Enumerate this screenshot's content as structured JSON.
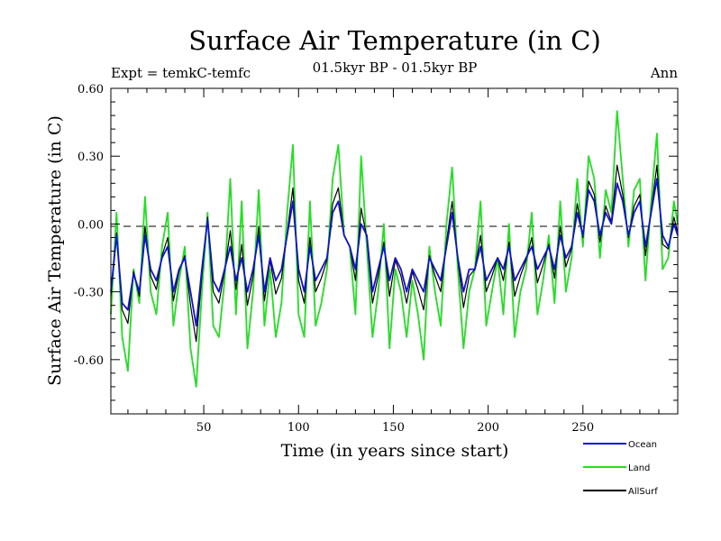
{
  "chart_data": {
    "type": "line",
    "title": "Surface Air Temperature (in C)",
    "subtitle": "01.5kyr BP - 01.5kyr BP",
    "left_label": "Expt = temkC-temfc",
    "right_label": "Ann",
    "xlabel": "Time (in years since start)",
    "ylabel": "Surface Air Temperature (in C)",
    "xlim": [
      1,
      300
    ],
    "ylim": [
      -0.84,
      0.6
    ],
    "x_ticks": [
      50,
      100,
      150,
      200,
      250
    ],
    "y_ticks": [
      "0.60",
      "0.30",
      "0.00",
      "-0.30",
      "-0.60"
    ],
    "reference_line": 0.0,
    "legend_position": "bottom-right",
    "series": [
      {
        "name": "Ocean",
        "color": "#1010d8",
        "x": [
          1,
          4,
          7,
          10,
          13,
          16,
          19,
          22,
          25,
          28,
          31,
          34,
          37,
          40,
          43,
          46,
          49,
          52,
          55,
          58,
          61,
          64,
          67,
          70,
          73,
          76,
          79,
          82,
          85,
          88,
          91,
          94,
          97,
          100,
          103,
          106,
          109,
          112,
          115,
          118,
          121,
          124,
          127,
          130,
          133,
          136,
          139,
          142,
          145,
          148,
          151,
          154,
          157,
          160,
          163,
          166,
          169,
          172,
          175,
          178,
          181,
          184,
          187,
          190,
          193,
          196,
          199,
          202,
          205,
          208,
          211,
          214,
          217,
          220,
          223,
          226,
          229,
          232,
          235,
          238,
          241,
          244,
          247,
          250,
          253,
          256,
          259,
          262,
          265,
          268,
          271,
          274,
          277,
          280,
          283,
          286,
          289,
          292,
          295,
          298,
          300
        ],
        "values": [
          -0.3,
          -0.05,
          -0.35,
          -0.38,
          -0.22,
          -0.3,
          -0.05,
          -0.2,
          -0.25,
          -0.15,
          -0.1,
          -0.3,
          -0.2,
          -0.15,
          -0.3,
          -0.45,
          -0.2,
          0.02,
          -0.25,
          -0.3,
          -0.2,
          -0.1,
          -0.25,
          -0.15,
          -0.3,
          -0.2,
          -0.05,
          -0.3,
          -0.15,
          -0.25,
          -0.2,
          -0.05,
          0.1,
          -0.2,
          -0.3,
          -0.1,
          -0.25,
          -0.2,
          -0.15,
          0.05,
          0.1,
          -0.05,
          -0.1,
          -0.2,
          0.0,
          -0.05,
          -0.3,
          -0.2,
          -0.1,
          -0.25,
          -0.15,
          -0.2,
          -0.3,
          -0.2,
          -0.25,
          -0.3,
          -0.15,
          -0.2,
          -0.25,
          -0.1,
          0.05,
          -0.15,
          -0.3,
          -0.2,
          -0.2,
          -0.1,
          -0.25,
          -0.2,
          -0.15,
          -0.2,
          -0.1,
          -0.25,
          -0.2,
          -0.15,
          -0.1,
          -0.2,
          -0.15,
          -0.1,
          -0.2,
          -0.05,
          -0.15,
          -0.1,
          0.05,
          -0.05,
          0.15,
          0.1,
          -0.05,
          0.05,
          0.0,
          0.18,
          0.1,
          -0.05,
          0.05,
          0.1,
          -0.1,
          0.05,
          0.2,
          -0.05,
          -0.1,
          0.0,
          -0.05
        ]
      },
      {
        "name": "Land",
        "color": "#20e020",
        "x": [
          1,
          4,
          7,
          10,
          13,
          16,
          19,
          22,
          25,
          28,
          31,
          34,
          37,
          40,
          43,
          46,
          49,
          52,
          55,
          58,
          61,
          64,
          67,
          70,
          73,
          76,
          79,
          82,
          85,
          88,
          91,
          94,
          97,
          100,
          103,
          106,
          109,
          112,
          115,
          118,
          121,
          124,
          127,
          130,
          133,
          136,
          139,
          142,
          145,
          148,
          151,
          154,
          157,
          160,
          163,
          166,
          169,
          172,
          175,
          178,
          181,
          184,
          187,
          190,
          193,
          196,
          199,
          202,
          205,
          208,
          211,
          214,
          217,
          220,
          223,
          226,
          229,
          232,
          235,
          238,
          241,
          244,
          247,
          250,
          253,
          256,
          259,
          262,
          265,
          268,
          271,
          274,
          277,
          280,
          283,
          286,
          289,
          292,
          295,
          298,
          300
        ],
        "values": [
          -0.4,
          0.05,
          -0.5,
          -0.65,
          -0.2,
          -0.35,
          0.12,
          -0.3,
          -0.4,
          -0.1,
          0.05,
          -0.45,
          -0.25,
          -0.1,
          -0.55,
          -0.72,
          -0.3,
          0.05,
          -0.45,
          -0.5,
          -0.25,
          0.2,
          -0.4,
          0.1,
          -0.55,
          -0.3,
          0.15,
          -0.45,
          -0.2,
          -0.5,
          -0.35,
          0.05,
          0.35,
          -0.4,
          -0.5,
          0.1,
          -0.45,
          -0.35,
          -0.2,
          0.2,
          0.35,
          -0.05,
          -0.1,
          -0.4,
          0.3,
          -0.1,
          -0.5,
          -0.3,
          0.0,
          -0.55,
          -0.2,
          -0.3,
          -0.5,
          -0.25,
          -0.4,
          -0.6,
          -0.1,
          -0.3,
          -0.45,
          0.0,
          0.25,
          -0.2,
          -0.55,
          -0.3,
          -0.2,
          0.1,
          -0.45,
          -0.3,
          -0.15,
          -0.4,
          0.0,
          -0.5,
          -0.3,
          -0.2,
          0.05,
          -0.4,
          -0.25,
          -0.05,
          -0.35,
          0.1,
          -0.3,
          -0.15,
          0.2,
          -0.1,
          0.3,
          0.2,
          -0.15,
          0.15,
          0.05,
          0.5,
          0.2,
          -0.1,
          0.15,
          0.2,
          -0.25,
          0.1,
          0.4,
          -0.2,
          -0.15,
          0.1,
          0.0
        ]
      },
      {
        "name": "AllSurf",
        "color": "#000000",
        "x": [
          1,
          4,
          7,
          10,
          13,
          16,
          19,
          22,
          25,
          28,
          31,
          34,
          37,
          40,
          43,
          46,
          49,
          52,
          55,
          58,
          61,
          64,
          67,
          70,
          73,
          76,
          79,
          82,
          85,
          88,
          91,
          94,
          97,
          100,
          103,
          106,
          109,
          112,
          115,
          118,
          121,
          124,
          127,
          130,
          133,
          136,
          139,
          142,
          145,
          148,
          151,
          154,
          157,
          160,
          163,
          166,
          169,
          172,
          175,
          178,
          181,
          184,
          187,
          190,
          193,
          196,
          199,
          202,
          205,
          208,
          211,
          214,
          217,
          220,
          223,
          226,
          229,
          232,
          235,
          238,
          241,
          244,
          247,
          250,
          253,
          256,
          259,
          262,
          265,
          268,
          271,
          274,
          277,
          280,
          283,
          286,
          289,
          292,
          295,
          298,
          300
        ],
        "values": [
          -0.32,
          -0.04,
          -0.38,
          -0.44,
          -0.21,
          -0.32,
          -0.01,
          -0.23,
          -0.29,
          -0.14,
          -0.06,
          -0.34,
          -0.21,
          -0.14,
          -0.36,
          -0.52,
          -0.23,
          0.03,
          -0.3,
          -0.35,
          -0.21,
          -0.03,
          -0.29,
          -0.09,
          -0.36,
          -0.23,
          -0.01,
          -0.34,
          -0.16,
          -0.31,
          -0.24,
          -0.04,
          0.16,
          -0.25,
          -0.35,
          -0.06,
          -0.3,
          -0.24,
          -0.16,
          0.09,
          0.16,
          -0.05,
          -0.1,
          -0.25,
          0.07,
          -0.06,
          -0.35,
          -0.23,
          -0.08,
          -0.32,
          -0.16,
          -0.23,
          -0.35,
          -0.21,
          -0.29,
          -0.38,
          -0.14,
          -0.23,
          -0.3,
          -0.08,
          0.1,
          -0.16,
          -0.37,
          -0.23,
          -0.2,
          -0.05,
          -0.3,
          -0.23,
          -0.15,
          -0.25,
          -0.08,
          -0.32,
          -0.23,
          -0.16,
          -0.06,
          -0.26,
          -0.18,
          -0.09,
          -0.24,
          -0.01,
          -0.19,
          -0.11,
          0.09,
          -0.06,
          0.19,
          0.13,
          -0.08,
          0.08,
          0.01,
          0.26,
          0.13,
          -0.06,
          0.08,
          0.13,
          -0.14,
          0.06,
          0.26,
          -0.09,
          -0.11,
          0.03,
          -0.04
        ]
      }
    ]
  }
}
